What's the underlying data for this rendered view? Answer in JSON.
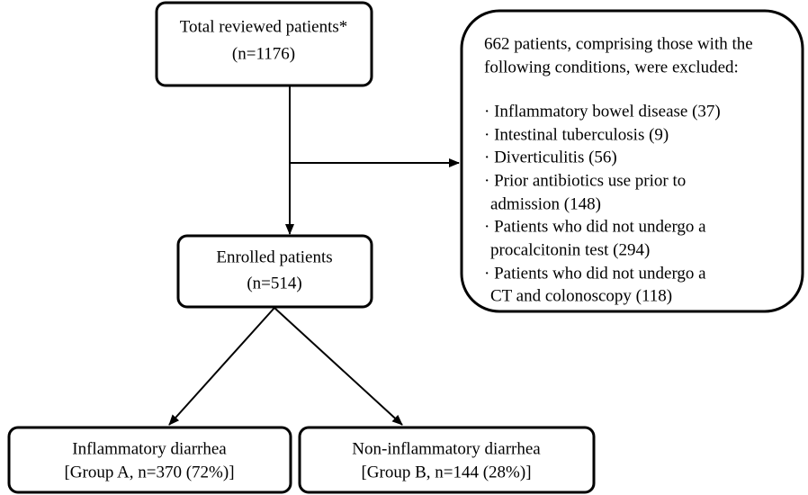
{
  "nodes": [
    {
      "lines": [
        "Total reviewed patients*",
        "(n=1176)"
      ]
    },
    {
      "lines": [
        "662 patients, comprising those with the",
        "following conditions, were excluded:"
      ],
      "items": [
        [
          "· Inflammatory bowel disease (37)"
        ],
        [
          "· Intestinal tuberculosis (9)"
        ],
        [
          "· Diverticulitis (56)"
        ],
        [
          "· Prior antibiotics use prior to",
          "admission (148)"
        ],
        [
          "· Patients who did not undergo a",
          "procalcitonin test (294)"
        ],
        [
          "· Patients who did not undergo a",
          "CT and colonoscopy (118)"
        ]
      ]
    },
    {
      "lines": [
        "Enrolled patients",
        "(n=514)"
      ]
    },
    {
      "lines": [
        "Inflammatory diarrhea",
        "[Group A, n=370 (72%)]"
      ]
    },
    {
      "lines": [
        "Non-inflammatory diarrhea",
        "[Group B, n=144 (28%)]"
      ]
    }
  ]
}
